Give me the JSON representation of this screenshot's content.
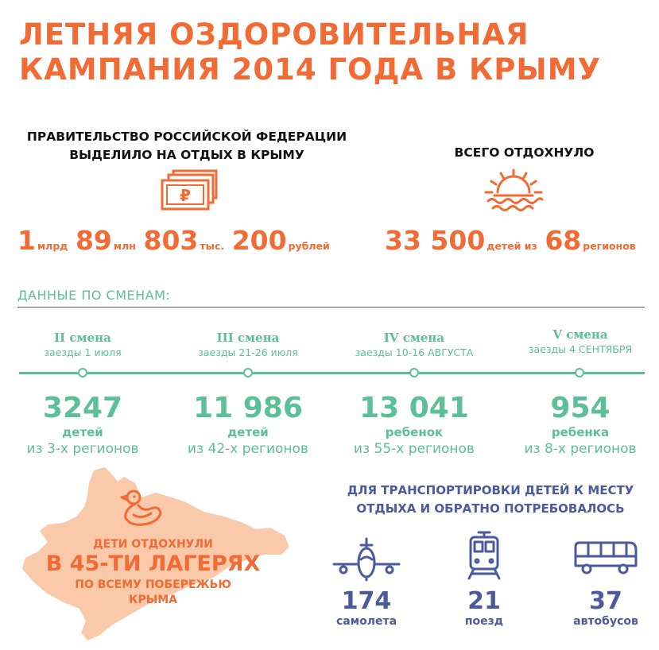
{
  "title": {
    "line1": "ЛЕТНЯЯ ОЗДОРОВИТЕЛЬНАЯ",
    "line2": "КАМПАНИЯ 2014 ГОДА В КРЫМУ"
  },
  "funding": {
    "heading_line1": "ПРАВИТЕЛЬСТВО РОССИЙСКОЙ ФЕДЕРАЦИИ",
    "heading_line2": "ВЫДЕЛИЛО НА ОТДЫХ В КРЫМУ",
    "icon": "ruble-banknote-icon",
    "n1": "1",
    "u1": "млрд",
    "n2": "89",
    "u2": "млн",
    "n3": "803",
    "u3": "тыс.",
    "n4": "200",
    "u4": "рублей"
  },
  "rested": {
    "heading": "ВСЕГО ОТДОХНУЛО",
    "icon": "sunset-sea-icon",
    "n1": "33 500",
    "u1": "детей из",
    "n2": "68",
    "u2": "регионов"
  },
  "shifts_label": "ДАННЫЕ ПО СМЕНАМ:",
  "shifts": [
    {
      "name": "II смена",
      "dates": "заезды 1 июля",
      "count": "3247",
      "unit": "детей",
      "regions": "из 3-х регионов"
    },
    {
      "name": "III смена",
      "dates": "заезды 21-26 июля",
      "count": "11 986",
      "unit": "детей",
      "regions": "из 42-х регионов"
    },
    {
      "name": "IV смена",
      "dates": "заезды 10-16 АВГУСТА",
      "count": "13 041",
      "unit": "ребенок",
      "regions": "из 55-х регионов"
    },
    {
      "name": "V смена",
      "dates": "заезды 4 СЕНТЯБРЯ",
      "count": "954",
      "unit": "ребенка",
      "regions": "из 8-х регионов"
    }
  ],
  "camps": {
    "line1": "ДЕТИ ОТДОХНУЛИ",
    "line2": "В 45-ти ЛАГЕРЯХ",
    "line3": "ПО ВСЕМУ ПОБЕРЕЖЬЮ",
    "line4": "КРЫМА",
    "map_icon": "crimea-map-icon",
    "duck_icon": "rubber-duck-icon"
  },
  "transport": {
    "heading_line1": "ДЛЯ ТРАНСПОРТИРОВКИ ДЕТЕЙ К МЕСТУ",
    "heading_line2": "ОТДЫХА И ОБРАТНО ПОТРЕБОВАЛОСЬ",
    "items": [
      {
        "icon": "airplane-icon",
        "count": "174",
        "unit": "самолета"
      },
      {
        "icon": "train-icon",
        "count": "21",
        "unit": "поезд"
      },
      {
        "icon": "bus-icon",
        "count": "37",
        "unit": "автобусов"
      }
    ]
  },
  "colors": {
    "orange": "#f26a34",
    "green": "#5cbf97",
    "blue": "#4a5a9c",
    "map": "#f9c9a9"
  }
}
